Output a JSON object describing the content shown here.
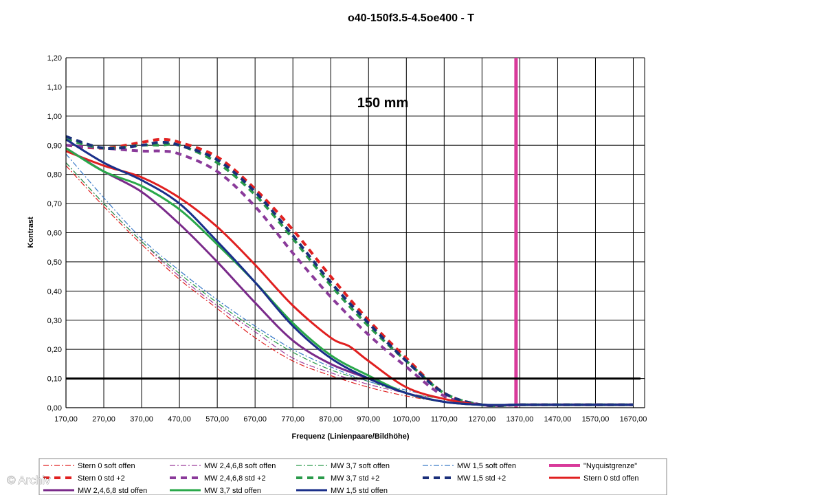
{
  "watermark": "© Archiv",
  "chart_data": {
    "type": "line",
    "title": "o40-150f3.5-4.5oe400 - T",
    "annotation": "150 mm",
    "xlabel": "Frequenz (Linienpaare/Bildhöhe)",
    "ylabel": "Kontrast",
    "xlim": [
      170,
      1700
    ],
    "ylim": [
      0,
      1.2
    ],
    "x_ticks": [
      "170,00",
      "270,00",
      "370,00",
      "470,00",
      "570,00",
      "670,00",
      "770,00",
      "870,00",
      "970,00",
      "1070,00",
      "1170,00",
      "1270,00",
      "1370,00",
      "1470,00",
      "1570,00",
      "1670,00"
    ],
    "y_ticks": [
      "0,00",
      "0,10",
      "0,20",
      "0,30",
      "0,40",
      "0,50",
      "0,60",
      "0,70",
      "0,80",
      "0,90",
      "1,00",
      "1,10",
      "1,20"
    ],
    "grid": true,
    "legend_position": "bottom",
    "threshold_line": {
      "y": 0.1,
      "color": "#000000"
    },
    "series": [
      {
        "name": "Stern 0 soft offen",
        "color": "#e02020",
        "style": "dashdot",
        "width": 1.2,
        "x": [
          170,
          270,
          370,
          470,
          570,
          670,
          770,
          870,
          970,
          1070,
          1170,
          1270,
          1370,
          1470,
          1570,
          1670
        ],
        "y": [
          0.83,
          0.69,
          0.56,
          0.44,
          0.34,
          0.24,
          0.16,
          0.11,
          0.07,
          0.04,
          0.02,
          0.01,
          0.01,
          0.01,
          0.01,
          0.01
        ]
      },
      {
        "name": "MW 2,4,6,8 soft offen",
        "color": "#9a3a9a",
        "style": "dashdot",
        "width": 1.2,
        "x": [
          170,
          270,
          370,
          470,
          570,
          670,
          770,
          870,
          970,
          1070,
          1170,
          1270,
          1370,
          1470,
          1570,
          1670
        ],
        "y": [
          0.84,
          0.7,
          0.57,
          0.45,
          0.35,
          0.26,
          0.17,
          0.12,
          0.08,
          0.05,
          0.03,
          0.01,
          0.01,
          0.01,
          0.01,
          0.01
        ]
      },
      {
        "name": "MW 3,7 soft offen",
        "color": "#2a9a4a",
        "style": "dashdot",
        "width": 1.2,
        "x": [
          170,
          270,
          370,
          470,
          570,
          670,
          770,
          870,
          970,
          1070,
          1170,
          1270,
          1370,
          1470,
          1570,
          1670
        ],
        "y": [
          0.84,
          0.7,
          0.57,
          0.46,
          0.36,
          0.27,
          0.19,
          0.13,
          0.09,
          0.05,
          0.03,
          0.01,
          0.01,
          0.01,
          0.01,
          0.01
        ]
      },
      {
        "name": "MW 1,5 soft offen",
        "color": "#3a7ac8",
        "style": "dashdot",
        "width": 1.2,
        "x": [
          170,
          270,
          370,
          470,
          570,
          670,
          770,
          870,
          970,
          1070,
          1170,
          1270,
          1370,
          1470,
          1570,
          1670
        ],
        "y": [
          0.87,
          0.72,
          0.58,
          0.47,
          0.37,
          0.28,
          0.2,
          0.14,
          0.09,
          0.06,
          0.03,
          0.01,
          0.01,
          0.01,
          0.01,
          0.01
        ]
      },
      {
        "name": "\"Nyquistgrenze\"",
        "color": "#d83a9a",
        "style": "vertical",
        "width": 5,
        "x": [
          1360,
          1360
        ],
        "y": [
          0,
          1.2
        ]
      },
      {
        "name": "Stern 0 std +2",
        "color": "#e02020",
        "style": "dash",
        "width": 4,
        "x": [
          170,
          270,
          370,
          420,
          470,
          570,
          670,
          770,
          870,
          970,
          1070,
          1170,
          1270,
          1370,
          1470,
          1570,
          1670
        ],
        "y": [
          0.9,
          0.89,
          0.91,
          0.92,
          0.91,
          0.86,
          0.75,
          0.61,
          0.45,
          0.3,
          0.17,
          0.05,
          0.01,
          0.01,
          0.01,
          0.01,
          0.01
        ]
      },
      {
        "name": "MW 2,4,6,8 std +2",
        "color": "#8a3a9a",
        "style": "dash",
        "width": 4,
        "x": [
          170,
          270,
          370,
          420,
          470,
          570,
          670,
          770,
          870,
          970,
          1070,
          1170,
          1270,
          1370,
          1470,
          1570,
          1670
        ],
        "y": [
          0.9,
          0.89,
          0.88,
          0.88,
          0.87,
          0.81,
          0.69,
          0.53,
          0.38,
          0.25,
          0.14,
          0.04,
          0.01,
          0.01,
          0.01,
          0.01,
          0.01
        ]
      },
      {
        "name": "MW 3,7 std +2",
        "color": "#2a9a4a",
        "style": "dash",
        "width": 4,
        "x": [
          170,
          270,
          370,
          420,
          470,
          570,
          670,
          770,
          870,
          970,
          1070,
          1170,
          1270,
          1370,
          1470,
          1570,
          1670
        ],
        "y": [
          0.92,
          0.89,
          0.9,
          0.9,
          0.9,
          0.84,
          0.73,
          0.58,
          0.42,
          0.28,
          0.16,
          0.05,
          0.01,
          0.01,
          0.01,
          0.01,
          0.01
        ]
      },
      {
        "name": "MW 1,5 std +2",
        "color": "#1a2f7a",
        "style": "dash",
        "width": 4,
        "x": [
          170,
          270,
          370,
          420,
          470,
          570,
          670,
          770,
          870,
          970,
          1070,
          1170,
          1270,
          1370,
          1470,
          1570,
          1670
        ],
        "y": [
          0.93,
          0.89,
          0.9,
          0.91,
          0.9,
          0.85,
          0.74,
          0.59,
          0.43,
          0.29,
          0.16,
          0.05,
          0.01,
          0.01,
          0.01,
          0.01,
          0.01
        ]
      },
      {
        "name": "Stern 0 std offen",
        "color": "#e02020",
        "style": "solid",
        "width": 3,
        "x": [
          170,
          270,
          370,
          470,
          570,
          670,
          770,
          870,
          920,
          970,
          1070,
          1170,
          1270,
          1370,
          1470,
          1570,
          1670
        ],
        "y": [
          0.88,
          0.83,
          0.79,
          0.72,
          0.62,
          0.49,
          0.35,
          0.24,
          0.21,
          0.16,
          0.07,
          0.03,
          0.01,
          0.01,
          0.01,
          0.01,
          0.01
        ]
      },
      {
        "name": "MW 2,4,6,8 std offen",
        "color": "#7a2a8a",
        "style": "solid",
        "width": 3,
        "x": [
          170,
          270,
          370,
          470,
          570,
          670,
          770,
          870,
          970,
          1070,
          1170,
          1270,
          1370,
          1470,
          1570,
          1670
        ],
        "y": [
          0.89,
          0.81,
          0.74,
          0.63,
          0.5,
          0.36,
          0.23,
          0.15,
          0.1,
          0.05,
          0.02,
          0.01,
          0.01,
          0.01,
          0.01,
          0.01
        ]
      },
      {
        "name": "MW 3,7 std offen",
        "color": "#2aa84a",
        "style": "solid",
        "width": 3,
        "x": [
          170,
          270,
          370,
          470,
          570,
          670,
          770,
          870,
          970,
          1070,
          1170,
          1270,
          1370,
          1470,
          1570,
          1670
        ],
        "y": [
          0.89,
          0.81,
          0.76,
          0.68,
          0.56,
          0.43,
          0.29,
          0.18,
          0.11,
          0.05,
          0.02,
          0.01,
          0.01,
          0.01,
          0.01,
          0.01
        ]
      },
      {
        "name": "MW 1,5 std offen",
        "color": "#1a2f8a",
        "style": "solid",
        "width": 3,
        "x": [
          170,
          270,
          370,
          470,
          570,
          670,
          770,
          870,
          970,
          1070,
          1170,
          1270,
          1370,
          1470,
          1570,
          1670
        ],
        "y": [
          0.92,
          0.84,
          0.78,
          0.7,
          0.57,
          0.43,
          0.28,
          0.17,
          0.1,
          0.05,
          0.02,
          0.01,
          0.01,
          0.01,
          0.01,
          0.01
        ]
      }
    ]
  }
}
